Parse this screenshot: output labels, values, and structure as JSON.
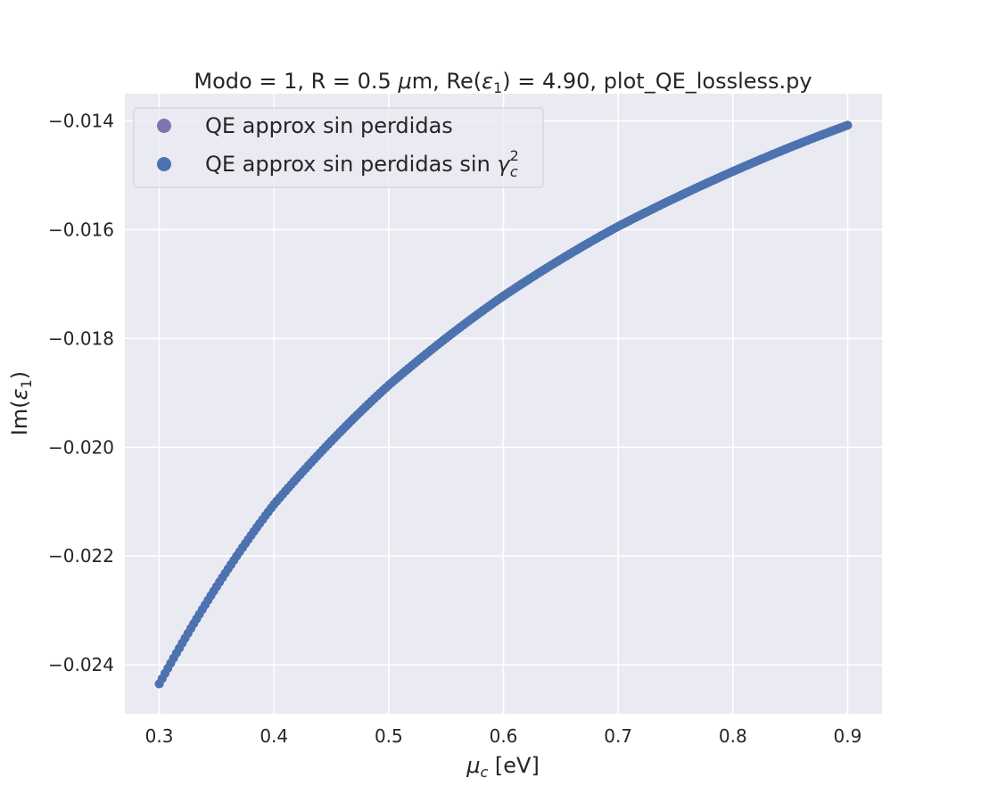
{
  "chart_data": {
    "type": "scatter",
    "title": {
      "prefix": "Modo = 1, R = 0.5 ",
      "mu": "μ",
      "unit": "m, Re(",
      "eps": "ε",
      "sub": "1",
      "suffix": ") = 4.90, plot_QE_lossless.py"
    },
    "xlabel": {
      "mu": "μ",
      "sub": "c",
      "rest": " [eV]"
    },
    "ylabel": {
      "prefix": "Im(",
      "eps": "ε",
      "sub": "1",
      "suffix": ")"
    },
    "xlim": [
      0.27,
      0.93
    ],
    "ylim": [
      -0.0249,
      -0.0135
    ],
    "xticks": [
      0.3,
      0.4,
      0.5,
      0.6,
      0.7,
      0.8,
      0.9
    ],
    "xtick_labels": [
      "0.3",
      "0.4",
      "0.5",
      "0.6",
      "0.7",
      "0.8",
      "0.9"
    ],
    "yticks": [
      -0.024,
      -0.022,
      -0.02,
      -0.018,
      -0.016,
      -0.014
    ],
    "ytick_labels": [
      "−0.024",
      "−0.022",
      "−0.020",
      "−0.018",
      "−0.016",
      "−0.014"
    ],
    "grid": true,
    "legend_position": "upper-left",
    "colors": {
      "series1": "#8172b2",
      "series2": "#4c72b0",
      "background": "#eaeaf2",
      "grid": "#ffffff"
    },
    "series": [
      {
        "name": "QE approx sin perdidas",
        "name_parts": {
          "text": "QE approx sin perdidas"
        },
        "x": [
          0.3,
          0.4,
          0.5,
          0.6,
          0.7,
          0.8,
          0.9
        ],
        "y": [
          -0.02435,
          -0.02105,
          -0.01886,
          -0.01722,
          -0.01594,
          -0.01493,
          -0.01408
        ]
      },
      {
        "name": "QE approx sin perdidas sin γc²",
        "name_parts": {
          "text": "QE approx sin perdidas sin ",
          "gamma": "γ",
          "sup": "2",
          "sub": "c"
        },
        "x": [
          0.3,
          0.4,
          0.5,
          0.6,
          0.7,
          0.8,
          0.9
        ],
        "y": [
          -0.02435,
          -0.02105,
          -0.01886,
          -0.01722,
          -0.01594,
          -0.01493,
          -0.01408
        ]
      }
    ]
  }
}
